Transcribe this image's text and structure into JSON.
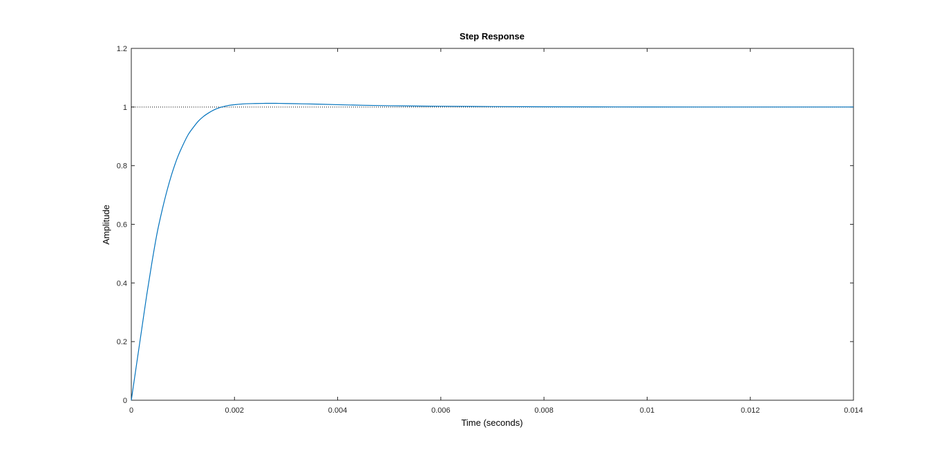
{
  "chart_data": {
    "type": "line",
    "title": "Step Response",
    "xlabel": "Time (seconds)",
    "ylabel": "Amplitude",
    "xlim": [
      0,
      0.014
    ],
    "ylim": [
      0,
      1.2
    ],
    "x_ticks": [
      0,
      0.002,
      0.004,
      0.006,
      0.008,
      0.01,
      0.012,
      0.014
    ],
    "x_tick_labels": [
      "0",
      "0.002",
      "0.004",
      "0.006",
      "0.008",
      "0.01",
      "0.012",
      "0.014"
    ],
    "y_ticks": [
      0,
      0.2,
      0.4,
      0.6,
      0.8,
      1,
      1.2
    ],
    "y_tick_labels": [
      "0",
      "0.2",
      "0.4",
      "0.6",
      "0.8",
      "1",
      "1.2"
    ],
    "grid": false,
    "steady_state": {
      "value": 1,
      "style": "dotted",
      "color": "#000000"
    },
    "series": [
      {
        "color": "#0072BD",
        "x": [
          0,
          0.0001,
          0.0002,
          0.0003,
          0.0004,
          0.0005,
          0.0006,
          0.0007,
          0.0008,
          0.0009,
          0.001,
          0.0011,
          0.0012,
          0.0013,
          0.0014,
          0.0015,
          0.0016,
          0.0017,
          0.0018,
          0.0019,
          0.002,
          0.0022,
          0.0024,
          0.0026,
          0.0028,
          0.003,
          0.0033,
          0.0036,
          0.004,
          0.0045,
          0.005,
          0.0055,
          0.006,
          0.007,
          0.008,
          0.009,
          0.01,
          0.011,
          0.012,
          0.013,
          0.014
        ],
        "y": [
          0,
          0.12,
          0.24,
          0.36,
          0.47,
          0.57,
          0.65,
          0.72,
          0.78,
          0.83,
          0.87,
          0.905,
          0.93,
          0.952,
          0.968,
          0.98,
          0.99,
          0.997,
          1.002,
          1.006,
          1.008,
          1.011,
          1.012,
          1.0125,
          1.0125,
          1.012,
          1.011,
          1.01,
          1.008,
          1.006,
          1.0045,
          1.0035,
          1.0027,
          1.0015,
          1.0008,
          1.0004,
          1.0002,
          1.0001,
          1.0,
          1.0,
          1.0
        ]
      }
    ]
  }
}
